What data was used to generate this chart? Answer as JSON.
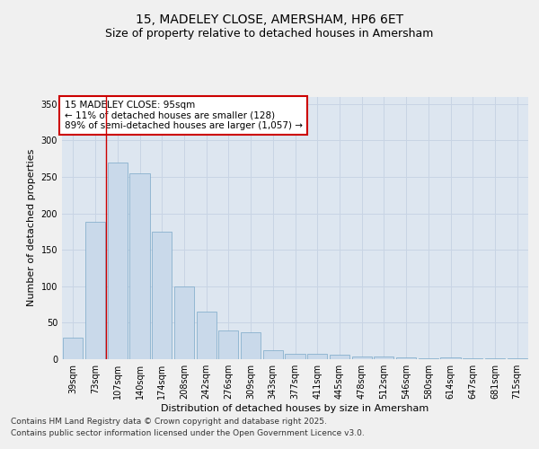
{
  "title_line1": "15, MADELEY CLOSE, AMERSHAM, HP6 6ET",
  "title_line2": "Size of property relative to detached houses in Amersham",
  "xlabel": "Distribution of detached houses by size in Amersham",
  "ylabel": "Number of detached properties",
  "categories": [
    "39sqm",
    "73sqm",
    "107sqm",
    "140sqm",
    "174sqm",
    "208sqm",
    "242sqm",
    "276sqm",
    "309sqm",
    "343sqm",
    "377sqm",
    "411sqm",
    "445sqm",
    "478sqm",
    "512sqm",
    "546sqm",
    "580sqm",
    "614sqm",
    "647sqm",
    "681sqm",
    "715sqm"
  ],
  "values": [
    30,
    188,
    270,
    255,
    175,
    100,
    65,
    40,
    37,
    12,
    8,
    8,
    6,
    4,
    4,
    3,
    1,
    2,
    1,
    1,
    1
  ],
  "bar_color": "#c9d9ea",
  "bar_edge_color": "#7aa8c8",
  "vline_x_idx": 1,
  "vline_color": "#cc0000",
  "annotation_text": "15 MADELEY CLOSE: 95sqm\n← 11% of detached houses are smaller (128)\n89% of semi-detached houses are larger (1,057) →",
  "annotation_box_color": "#ffffff",
  "annotation_box_edge": "#cc0000",
  "ylim": [
    0,
    360
  ],
  "yticks": [
    0,
    50,
    100,
    150,
    200,
    250,
    300,
    350
  ],
  "grid_color": "#c8d4e4",
  "plot_bg_color": "#dde6f0",
  "fig_bg_color": "#f0f0f0",
  "footer_line1": "Contains HM Land Registry data © Crown copyright and database right 2025.",
  "footer_line2": "Contains public sector information licensed under the Open Government Licence v3.0.",
  "title_fontsize": 10,
  "subtitle_fontsize": 9,
  "annotation_fontsize": 7.5,
  "axis_label_fontsize": 8,
  "tick_fontsize": 7,
  "footer_fontsize": 6.5
}
